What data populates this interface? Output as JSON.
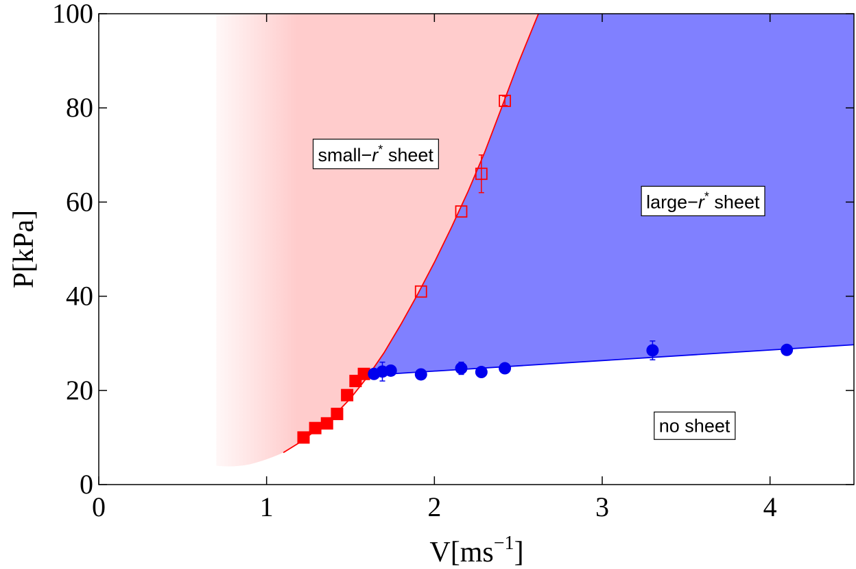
{
  "chart_data": {
    "type": "scatter",
    "xlabel": "V[ms",
    "xlabel_sup": "−1",
    "xlabel_close": "]",
    "ylabel": "P[kPa]",
    "xlim": [
      0,
      4.5
    ],
    "ylim": [
      0,
      100
    ],
    "x_ticks": [
      0,
      1,
      2,
      3,
      4
    ],
    "y_ticks": [
      0,
      20,
      40,
      60,
      80,
      100
    ],
    "grid": false,
    "colors": {
      "red": "#ff0000",
      "blue": "#0000ee",
      "pink_fill": "#ffcccc",
      "blue_fill": "#8080ff"
    },
    "region_labels": [
      {
        "id": "small",
        "prefix": "small−",
        "italic": "r",
        "sup": "*",
        "suffix": " sheet",
        "x": 1.65,
        "y": 70
      },
      {
        "id": "large",
        "prefix": "large−",
        "italic": "r",
        "sup": "*",
        "suffix": " sheet",
        "x": 3.6,
        "y": 60
      },
      {
        "id": "none",
        "prefix": "no sheet",
        "italic": "",
        "sup": "",
        "suffix": "",
        "x": 3.55,
        "y": 12.5
      }
    ],
    "red_boundary_curve": {
      "x": [
        1.1,
        1.2,
        1.3,
        1.4,
        1.5,
        1.6,
        1.7,
        1.8,
        1.9,
        2.0,
        2.1,
        2.2,
        2.3,
        2.4,
        2.5,
        2.62
      ],
      "y": [
        6.8,
        9.0,
        11.7,
        14.6,
        18.3,
        22.8,
        28.0,
        34.0,
        40.4,
        47.2,
        54.5,
        62.2,
        70.6,
        80.0,
        89.5,
        100
      ]
    },
    "blue_boundary_line": {
      "x": [
        1.6,
        4.5
      ],
      "y": [
        23.2,
        29.7
      ]
    },
    "series": [
      {
        "name": "",
        "marker": "filled-square",
        "color": "#ff0000",
        "points": [
          {
            "x": 1.22,
            "y": 10.0
          },
          {
            "x": 1.29,
            "y": 12.0
          },
          {
            "x": 1.36,
            "y": 13.0
          },
          {
            "x": 1.42,
            "y": 15.0
          },
          {
            "x": 1.48,
            "y": 19.0
          },
          {
            "x": 1.53,
            "y": 22.0
          },
          {
            "x": 1.58,
            "y": 23.5
          }
        ]
      },
      {
        "name": "",
        "marker": "open-square",
        "color": "#ff0000",
        "points": [
          {
            "x": 1.92,
            "y": 41.0,
            "err": 0
          },
          {
            "x": 2.16,
            "y": 58.0,
            "err": 0
          },
          {
            "x": 2.28,
            "y": 66.0,
            "err": 4.0
          },
          {
            "x": 2.42,
            "y": 81.5,
            "err": 1.0
          }
        ]
      },
      {
        "name": "",
        "marker": "filled-circle",
        "color": "#0000ee",
        "points": [
          {
            "x": 1.64,
            "y": 23.5,
            "err": 0
          },
          {
            "x": 1.69,
            "y": 24.0,
            "err": 2.0
          },
          {
            "x": 1.74,
            "y": 24.2,
            "err": 0
          },
          {
            "x": 1.92,
            "y": 23.4,
            "err": 0
          },
          {
            "x": 2.16,
            "y": 24.7,
            "err": 1.3
          },
          {
            "x": 2.28,
            "y": 23.9,
            "err": 0
          },
          {
            "x": 2.42,
            "y": 24.7,
            "err": 0
          },
          {
            "x": 3.3,
            "y": 28.5,
            "err": 2.0
          },
          {
            "x": 4.1,
            "y": 28.6,
            "err": 0
          }
        ]
      }
    ]
  }
}
